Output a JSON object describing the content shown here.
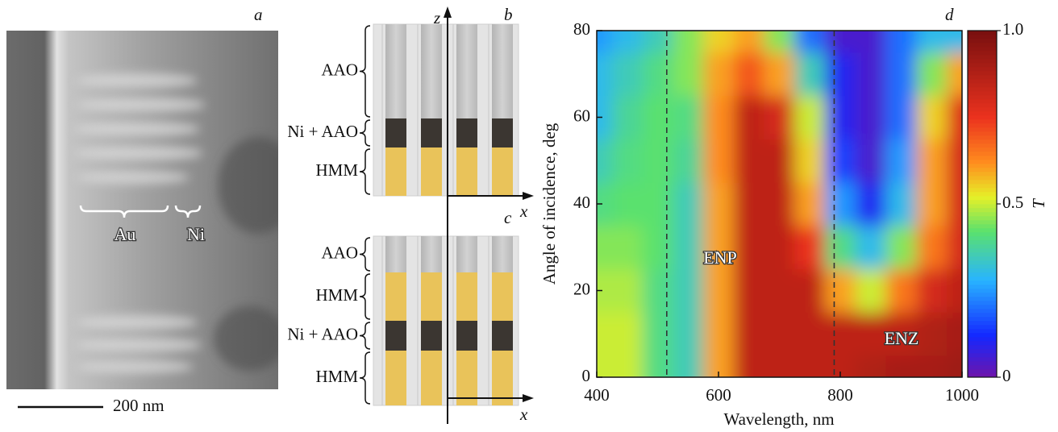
{
  "panel_a": {
    "label": "a",
    "annotations": [
      "Au",
      "Ni"
    ],
    "scale_bar": "200 nm"
  },
  "panel_b": {
    "label": "b",
    "axis_z": "z",
    "axis_x": "x",
    "layers": [
      "AAO",
      "Ni + AAO",
      "HMM"
    ]
  },
  "panel_c": {
    "label": "c",
    "axis_x": "x",
    "layers": [
      "AAO",
      "HMM",
      "Ni + AAO",
      "HMM"
    ]
  },
  "chart_data": {
    "type": "heatmap",
    "panel_label": "d",
    "x_label": "Wavelength, nm",
    "y_label": "Angle of incidence, deg",
    "colorbar_label": "T",
    "x": [
      400,
      450,
      500,
      550,
      600,
      650,
      700,
      750,
      800,
      850,
      900,
      950,
      1000
    ],
    "y": [
      0,
      10,
      20,
      30,
      40,
      50,
      60,
      70,
      80
    ],
    "values": [
      [
        0.5,
        0.5,
        0.4,
        0.35,
        0.6,
        0.85,
        0.85,
        0.85,
        0.85,
        0.88,
        0.9,
        0.9,
        0.92
      ],
      [
        0.5,
        0.5,
        0.4,
        0.35,
        0.6,
        0.85,
        0.85,
        0.85,
        0.85,
        0.85,
        0.85,
        0.88,
        0.9
      ],
      [
        0.48,
        0.48,
        0.4,
        0.35,
        0.6,
        0.85,
        0.85,
        0.85,
        0.6,
        0.5,
        0.65,
        0.8,
        0.85
      ],
      [
        0.45,
        0.45,
        0.42,
        0.35,
        0.6,
        0.85,
        0.85,
        0.75,
        0.4,
        0.3,
        0.45,
        0.65,
        0.8
      ],
      [
        0.4,
        0.42,
        0.42,
        0.35,
        0.6,
        0.85,
        0.85,
        0.6,
        0.25,
        0.1,
        0.3,
        0.6,
        0.8
      ],
      [
        0.35,
        0.4,
        0.42,
        0.38,
        0.62,
        0.85,
        0.85,
        0.55,
        0.15,
        0.05,
        0.25,
        0.6,
        0.8
      ],
      [
        0.3,
        0.38,
        0.42,
        0.4,
        0.62,
        0.85,
        0.8,
        0.5,
        0.1,
        0.05,
        0.2,
        0.55,
        0.78
      ],
      [
        0.3,
        0.35,
        0.4,
        0.45,
        0.6,
        0.7,
        0.6,
        0.35,
        0.1,
        0.05,
        0.2,
        0.45,
        0.6
      ],
      [
        0.25,
        0.3,
        0.35,
        0.45,
        0.55,
        0.6,
        0.45,
        0.2,
        0.05,
        0.05,
        0.2,
        0.3,
        0.3
      ]
    ],
    "xlim": [
      400,
      1000
    ],
    "ylim": [
      0,
      80
    ],
    "xticks": [
      400,
      600,
      800,
      1000
    ],
    "yticks": [
      0,
      20,
      40,
      60,
      80
    ],
    "clim": [
      0,
      1
    ],
    "cticks": [
      0,
      0.5,
      {
        "value": 1,
        "label": "1.0"
      }
    ],
    "reference_lines": [
      515,
      790
    ],
    "annotations": [
      "ENP",
      "ENZ"
    ]
  }
}
